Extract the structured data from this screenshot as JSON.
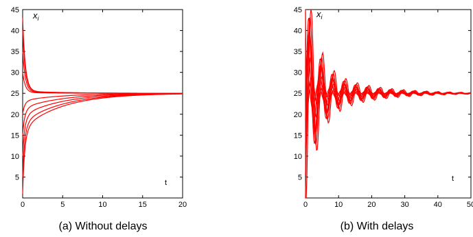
{
  "figure": {
    "caption_a": "(a) Without delays",
    "caption_b": "(b) With delays"
  },
  "chart_data": [
    {
      "type": "line",
      "ylabel": "x_i",
      "xlabel": "t",
      "xlim": [
        0,
        20
      ],
      "ylim": [
        0,
        45
      ],
      "x_ticks": [
        0,
        5,
        10,
        15,
        20
      ],
      "y_ticks": [
        5,
        10,
        15,
        20,
        25,
        30,
        35,
        40,
        45
      ],
      "grid": false,
      "color": "#ff0000",
      "equilibrium": 25,
      "initial_values": [
        1,
        5,
        10,
        15,
        20,
        30,
        35,
        40,
        43
      ],
      "description_of_dynamics": "overdamped convergence of all trajectories to 25"
    },
    {
      "type": "line",
      "ylabel": "x_i",
      "xlabel": "t",
      "xlim": [
        0,
        50
      ],
      "ylim": [
        0,
        45
      ],
      "x_ticks": [
        0,
        10,
        20,
        30,
        40,
        50
      ],
      "y_ticks": [
        5,
        10,
        15,
        20,
        25,
        30,
        35,
        40,
        45
      ],
      "grid": false,
      "color": "#ff0000",
      "equilibrium": 25,
      "initial_values": [
        1,
        5,
        10,
        15,
        20,
        30,
        35,
        40,
        43
      ],
      "description_of_dynamics": "damped oscillatory convergence of all trajectories to 25"
    }
  ]
}
